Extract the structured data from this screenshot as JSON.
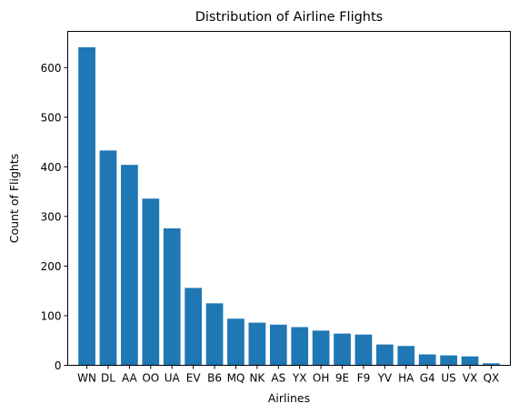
{
  "chart_data": {
    "type": "bar",
    "title": "Distribution of Airline Flights",
    "xlabel": "Airlines",
    "ylabel": "Count of Flights",
    "categories": [
      "WN",
      "DL",
      "AA",
      "OO",
      "UA",
      "EV",
      "B6",
      "MQ",
      "NK",
      "AS",
      "YX",
      "OH",
      "9E",
      "F9",
      "YV",
      "HA",
      "G4",
      "US",
      "VX",
      "QX"
    ],
    "values": [
      641,
      433,
      404,
      336,
      276,
      156,
      125,
      94,
      86,
      82,
      77,
      70,
      64,
      62,
      42,
      39,
      22,
      20,
      18,
      4
    ],
    "ylim": [
      0,
      673
    ],
    "yticks": [
      0,
      100,
      200,
      300,
      400,
      500,
      600
    ],
    "grid": false,
    "bar_color": "#1f77b4"
  }
}
